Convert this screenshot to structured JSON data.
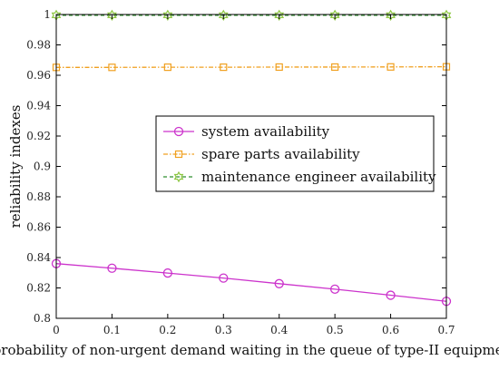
{
  "chart_data": {
    "type": "line",
    "xlabel": "probability of non-urgent demand waiting in the queue of type-II equipment",
    "ylabel": "reliability indexes",
    "x": [
      0,
      0.1,
      0.2,
      0.3,
      0.4,
      0.5,
      0.6,
      0.7
    ],
    "xlim": [
      0,
      0.7
    ],
    "ylim": [
      0.8,
      1.0
    ],
    "xticks": [
      "0",
      "0.1",
      "0.2",
      "0.3",
      "0.4",
      "0.5",
      "0.6",
      "0.7"
    ],
    "yticks": [
      "0.8",
      "0.82",
      "0.84",
      "0.86",
      "0.88",
      "0.9",
      "0.92",
      "0.94",
      "0.96",
      "0.98",
      "1"
    ],
    "grid": false,
    "legend_position": "center-right",
    "series": [
      {
        "name": "system availability",
        "values": [
          0.836,
          0.833,
          0.8298,
          0.8265,
          0.8228,
          0.8192,
          0.8152,
          0.8112
        ],
        "color": "#cc33cc",
        "line_style": "solid",
        "marker": "circle"
      },
      {
        "name": "spare parts availability",
        "values": [
          0.9652,
          0.9652,
          0.9653,
          0.9653,
          0.9654,
          0.9654,
          0.9655,
          0.9656
        ],
        "color": "#f0a020",
        "line_style": "dash-dot",
        "marker": "square"
      },
      {
        "name": "maintenance engineer availability",
        "values": [
          0.9995,
          0.9995,
          0.9995,
          0.9995,
          0.9995,
          0.9995,
          0.9995,
          0.9995
        ],
        "color": "#2f8f2f",
        "marker_color": "#8cc63f",
        "line_style": "dashed",
        "marker": "hexagram"
      }
    ]
  }
}
